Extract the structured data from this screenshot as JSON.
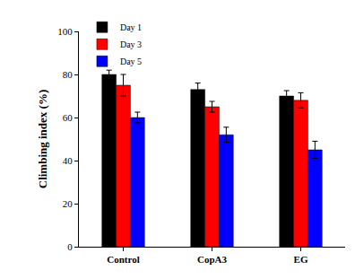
{
  "chart_data": {
    "type": "bar",
    "ylabel": "Climbing index (%)",
    "categories": [
      "Control",
      "CopA3",
      "EG"
    ],
    "series": [
      {
        "name": "Day 1",
        "color": "#000000",
        "values": [
          80,
          73,
          70
        ],
        "errors": [
          2,
          3,
          2.5
        ]
      },
      {
        "name": "Day 3",
        "color": "#ff0000",
        "values": [
          75,
          65,
          68
        ],
        "errors": [
          5,
          2.5,
          3.5
        ]
      },
      {
        "name": "Day 5",
        "color": "#0000ff",
        "values": [
          60,
          52,
          45
        ],
        "errors": [
          2.5,
          3.5,
          4
        ]
      }
    ],
    "ylim": [
      0,
      100
    ],
    "yticks": [
      0,
      20,
      40,
      60,
      80,
      100
    ],
    "grid": false,
    "legend": "top-left"
  }
}
